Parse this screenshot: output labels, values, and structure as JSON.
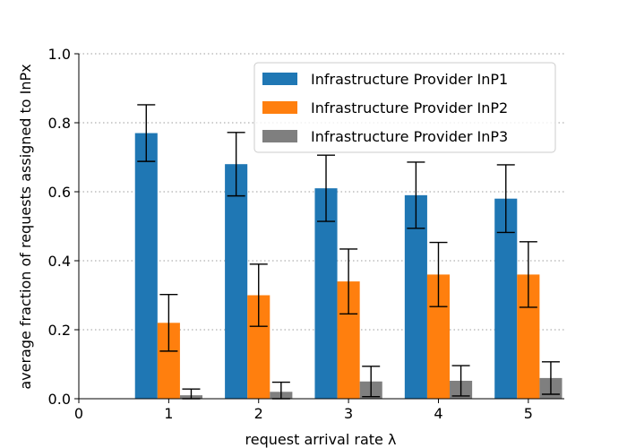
{
  "chart_data": {
    "type": "bar",
    "title": "",
    "xlabel": "request arrival rate λ",
    "ylabel": "average fraction of requests assigned to InPx",
    "x_ticks": [
      0,
      1,
      2,
      3,
      4,
      5
    ],
    "y_ticks": [
      0.0,
      0.2,
      0.4,
      0.6,
      0.8,
      1.0
    ],
    "ylim": [
      0,
      1.0
    ],
    "xlim": [
      0,
      5.4
    ],
    "categories": [
      1,
      2,
      3,
      4,
      5
    ],
    "grid": "horizontal dotted",
    "legend_position": "top-right",
    "series": [
      {
        "name": "Infrastructure Provider InP1",
        "color": "#1f77b4",
        "values": [
          0.77,
          0.68,
          0.61,
          0.59,
          0.58
        ],
        "errors": [
          0.082,
          0.092,
          0.096,
          0.096,
          0.098
        ]
      },
      {
        "name": "Infrastructure Provider InP2",
        "color": "#ff7f0e",
        "values": [
          0.22,
          0.3,
          0.34,
          0.36,
          0.36
        ],
        "errors": [
          0.082,
          0.09,
          0.094,
          0.093,
          0.095
        ]
      },
      {
        "name": "Infrastructure Provider InP3",
        "color": "#7f7f7f",
        "values": [
          0.01,
          0.02,
          0.05,
          0.052,
          0.06
        ],
        "errors": [
          0.018,
          0.028,
          0.044,
          0.044,
          0.047
        ]
      }
    ]
  }
}
